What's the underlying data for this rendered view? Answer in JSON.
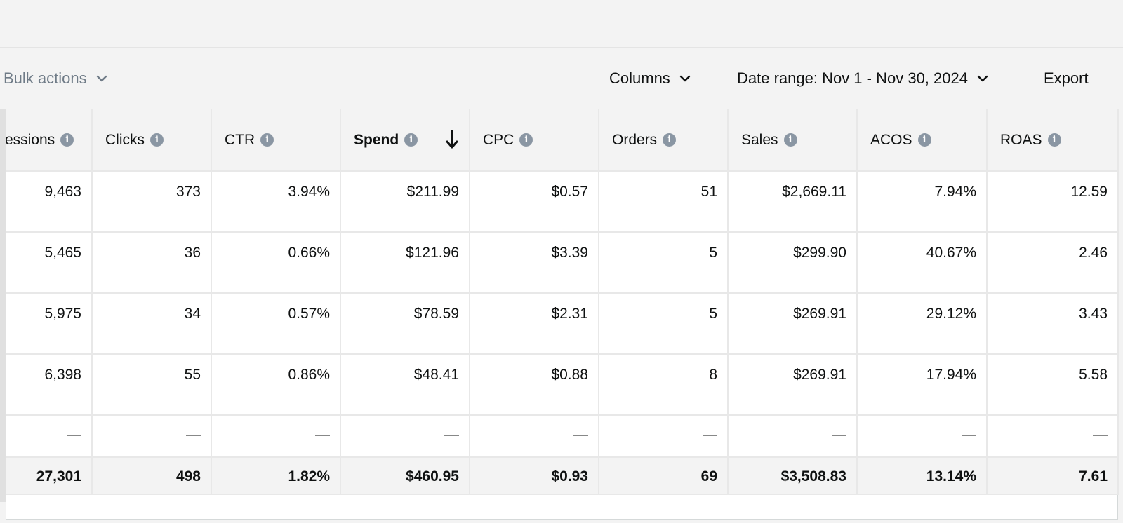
{
  "toolbar": {
    "bulk_actions": "Bulk actions",
    "columns": "Columns",
    "date_range": "Date range: Nov 1 - Nov 30, 2024",
    "export": "Export"
  },
  "table": {
    "headers": [
      "ressions",
      "Clicks",
      "CTR",
      "Spend",
      "CPC",
      "Orders",
      "Sales",
      "ACOS",
      "ROAS"
    ],
    "rows": [
      [
        "9,463",
        "373",
        "3.94%",
        "$211.99",
        "$0.57",
        "51",
        "$2,669.11",
        "7.94%",
        "12.59"
      ],
      [
        "5,465",
        "36",
        "0.66%",
        "$121.96",
        "$3.39",
        "5",
        "$299.90",
        "40.67%",
        "2.46"
      ],
      [
        "5,975",
        "34",
        "0.57%",
        "$78.59",
        "$2.31",
        "5",
        "$269.91",
        "29.12%",
        "3.43"
      ],
      [
        "6,398",
        "55",
        "0.86%",
        "$48.41",
        "$0.88",
        "8",
        "$269.91",
        "17.94%",
        "5.58"
      ]
    ],
    "dash_row": [
      "—",
      "—",
      "—",
      "—",
      "—",
      "—",
      "—",
      "—",
      "—"
    ],
    "totals": [
      "27,301",
      "498",
      "1.82%",
      "$460.95",
      "$0.93",
      "69",
      "$3,508.83",
      "13.14%",
      "7.61"
    ],
    "info_glyph": "i",
    "sorted_column": "Spend",
    "sort_direction": "descending"
  }
}
